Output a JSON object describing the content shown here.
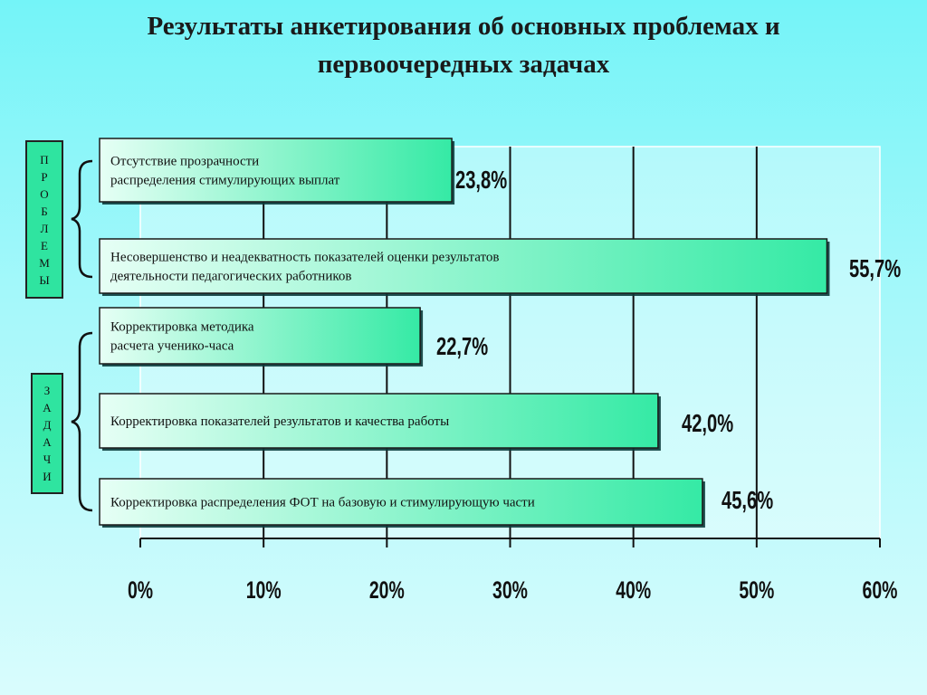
{
  "title": "Результаты анкетирования об основных проблемах и\nпервоочередных задачах",
  "group_labels": {
    "problems": [
      "П",
      "Р",
      "О",
      "Б",
      "Л",
      "Е",
      "М",
      "Ы"
    ],
    "tasks": [
      "З",
      "А",
      "Д",
      "А",
      "Ч",
      "И"
    ]
  },
  "colors": {
    "bar_fill_start": "#e6fff5",
    "bar_fill_end": "#35eaa5",
    "group_label_bg": "#2fe4a0",
    "background_top": "#74f4f8",
    "background_bottom": "#d9fcfd"
  },
  "chart_data": {
    "type": "bar",
    "orientation": "horizontal",
    "categories": [
      "Отсутствие прозрачности\nраспределения стимулирующих выплат",
      "Несовершенство и неадекватность показателей оценки  результатов\nдеятельности педагогических работников",
      "Корректировка методика\nрасчета ученико-часа",
      "Корректировка показателей результатов и качества работы",
      "Корректировка распределения ФОТ на базовую и стимулирующую части"
    ],
    "values": [
      23.8,
      55.7,
      22.7,
      42.0,
      45.6
    ],
    "value_labels": [
      "23,8%",
      "55,7%",
      "22,7%",
      "42,0%",
      "45,6%"
    ],
    "xlim": [
      0,
      60
    ],
    "xticks": [
      0,
      10,
      20,
      30,
      40,
      50,
      60
    ],
    "xtick_labels": [
      "0%",
      "10%",
      "20%",
      "30%",
      "40%",
      "50%",
      "60%"
    ],
    "grid": true
  }
}
